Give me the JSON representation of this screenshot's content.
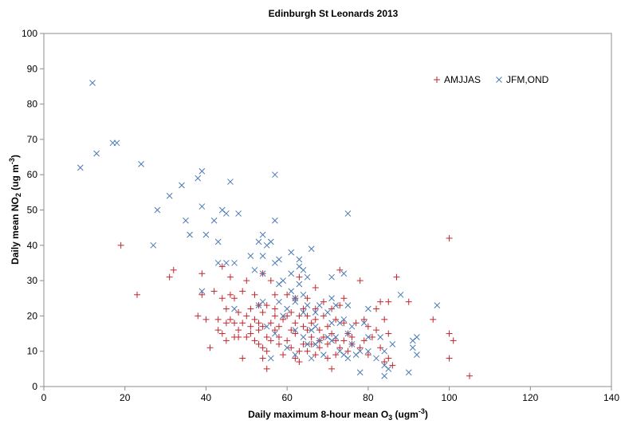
{
  "chart_data": {
    "type": "scatter",
    "title": "Edinburgh St Leonards 2013",
    "xlabel": {
      "main": "Daily maximum 8-hour mean O",
      "sub": "3",
      "tail": " (ugm",
      "sup": "-3",
      "end": ")"
    },
    "ylabel": {
      "main": "Daily mean NO",
      "sub": "2",
      "tail": " (ug m",
      "sup": "-3",
      "end": ")"
    },
    "xlim": [
      0,
      140
    ],
    "ylim": [
      0,
      100
    ],
    "xticks": [
      0,
      20,
      40,
      60,
      80,
      100,
      120,
      140
    ],
    "yticks": [
      0,
      10,
      20,
      30,
      40,
      50,
      60,
      70,
      80,
      90,
      100
    ],
    "grid": false,
    "legend_position": "top-right",
    "series": [
      {
        "name": "AMJJAS",
        "marker": "plus",
        "color": "#c0272d",
        "points": [
          [
            19,
            40
          ],
          [
            23,
            26
          ],
          [
            31,
            31
          ],
          [
            32,
            33
          ],
          [
            38,
            20
          ],
          [
            39,
            32
          ],
          [
            39,
            26
          ],
          [
            40,
            19
          ],
          [
            41,
            11
          ],
          [
            42,
            27
          ],
          [
            43,
            19
          ],
          [
            43,
            16
          ],
          [
            44,
            34
          ],
          [
            44,
            25
          ],
          [
            44,
            15
          ],
          [
            45,
            18
          ],
          [
            45,
            13
          ],
          [
            45,
            22
          ],
          [
            46,
            26
          ],
          [
            46,
            31
          ],
          [
            46,
            19
          ],
          [
            47,
            25
          ],
          [
            47,
            14
          ],
          [
            47,
            18
          ],
          [
            48,
            16
          ],
          [
            48,
            14
          ],
          [
            48,
            21
          ],
          [
            49,
            27
          ],
          [
            49,
            18
          ],
          [
            49,
            8
          ],
          [
            50,
            30
          ],
          [
            50,
            14
          ],
          [
            50,
            20
          ],
          [
            51,
            17
          ],
          [
            51,
            15
          ],
          [
            51,
            22
          ],
          [
            52,
            19
          ],
          [
            52,
            26
          ],
          [
            52,
            13
          ],
          [
            53,
            23
          ],
          [
            53,
            18
          ],
          [
            53,
            16
          ],
          [
            53,
            12
          ],
          [
            54,
            32
          ],
          [
            54,
            21
          ],
          [
            54,
            17
          ],
          [
            54,
            11
          ],
          [
            54,
            8
          ],
          [
            55,
            23
          ],
          [
            55,
            14
          ],
          [
            55,
            10
          ],
          [
            55,
            5
          ],
          [
            56,
            30
          ],
          [
            56,
            18
          ],
          [
            56,
            13
          ],
          [
            57,
            26
          ],
          [
            57,
            22
          ],
          [
            57,
            20
          ],
          [
            57,
            16
          ],
          [
            58,
            17
          ],
          [
            58,
            14
          ],
          [
            58,
            12
          ],
          [
            59,
            19
          ],
          [
            59,
            9
          ],
          [
            60,
            26
          ],
          [
            60,
            20
          ],
          [
            60,
            13
          ],
          [
            61,
            16
          ],
          [
            61,
            21
          ],
          [
            61,
            11
          ],
          [
            62,
            25
          ],
          [
            62,
            18
          ],
          [
            62,
            15
          ],
          [
            62,
            8
          ],
          [
            63,
            31
          ],
          [
            63,
            20
          ],
          [
            63,
            10
          ],
          [
            63,
            7
          ],
          [
            64,
            22
          ],
          [
            64,
            17
          ],
          [
            64,
            12
          ],
          [
            65,
            25
          ],
          [
            65,
            20
          ],
          [
            65,
            16
          ],
          [
            65,
            10
          ],
          [
            66,
            18
          ],
          [
            66,
            14
          ],
          [
            66,
            12
          ],
          [
            67,
            28
          ],
          [
            67,
            22
          ],
          [
            67,
            19
          ],
          [
            67,
            9
          ],
          [
            68,
            16
          ],
          [
            68,
            13
          ],
          [
            68,
            11
          ],
          [
            69,
            24
          ],
          [
            69,
            20
          ],
          [
            69,
            14
          ],
          [
            70,
            17
          ],
          [
            70,
            12
          ],
          [
            70,
            8
          ],
          [
            71,
            22
          ],
          [
            71,
            15
          ],
          [
            71,
            5
          ],
          [
            72,
            19
          ],
          [
            72,
            13
          ],
          [
            72,
            9
          ],
          [
            73,
            33
          ],
          [
            73,
            23
          ],
          [
            73,
            11
          ],
          [
            74,
            25
          ],
          [
            74,
            18
          ],
          [
            74,
            13
          ],
          [
            75,
            15
          ],
          [
            75,
            10
          ],
          [
            76,
            14
          ],
          [
            76,
            12
          ],
          [
            77,
            18
          ],
          [
            78,
            30
          ],
          [
            78,
            11
          ],
          [
            79,
            19
          ],
          [
            79,
            13
          ],
          [
            80,
            17
          ],
          [
            80,
            9
          ],
          [
            81,
            14
          ],
          [
            82,
            22
          ],
          [
            82,
            16
          ],
          [
            83,
            24
          ],
          [
            83,
            11
          ],
          [
            84,
            19
          ],
          [
            84,
            7
          ],
          [
            85,
            24
          ],
          [
            85,
            15
          ],
          [
            85,
            8
          ],
          [
            86,
            6
          ],
          [
            87,
            31
          ],
          [
            90,
            24
          ],
          [
            96,
            19
          ],
          [
            100,
            42
          ],
          [
            100,
            15
          ],
          [
            100,
            8
          ],
          [
            101,
            13
          ],
          [
            105,
            3
          ]
        ]
      },
      {
        "name": "JFM,OND",
        "marker": "cross",
        "color": "#4a7ab5",
        "points": [
          [
            9,
            62
          ],
          [
            12,
            86
          ],
          [
            13,
            66
          ],
          [
            17,
            69
          ],
          [
            18,
            69
          ],
          [
            24,
            63
          ],
          [
            27,
            40
          ],
          [
            28,
            50
          ],
          [
            31,
            54
          ],
          [
            34,
            57
          ],
          [
            35,
            47
          ],
          [
            36,
            43
          ],
          [
            38,
            59
          ],
          [
            39,
            61
          ],
          [
            39,
            51
          ],
          [
            39,
            27
          ],
          [
            40,
            43
          ],
          [
            42,
            47
          ],
          [
            43,
            41
          ],
          [
            43,
            35
          ],
          [
            44,
            50
          ],
          [
            45,
            35
          ],
          [
            45,
            49
          ],
          [
            46,
            58
          ],
          [
            47,
            35
          ],
          [
            47,
            22
          ],
          [
            48,
            49
          ],
          [
            51,
            37
          ],
          [
            52,
            33
          ],
          [
            53,
            41
          ],
          [
            53,
            23
          ],
          [
            54,
            43
          ],
          [
            54,
            37
          ],
          [
            54,
            32
          ],
          [
            54,
            24
          ],
          [
            55,
            40
          ],
          [
            55,
            17
          ],
          [
            56,
            41
          ],
          [
            56,
            8
          ],
          [
            57,
            60
          ],
          [
            57,
            47
          ],
          [
            57,
            35
          ],
          [
            57,
            15
          ],
          [
            58,
            36
          ],
          [
            58,
            29
          ],
          [
            58,
            24
          ],
          [
            59,
            20
          ],
          [
            59,
            30
          ],
          [
            60,
            22
          ],
          [
            60,
            11
          ],
          [
            61,
            32
          ],
          [
            61,
            27
          ],
          [
            61,
            38
          ],
          [
            62,
            24
          ],
          [
            62,
            25
          ],
          [
            62,
            16
          ],
          [
            62,
            9
          ],
          [
            63,
            36
          ],
          [
            63,
            34
          ],
          [
            63,
            29
          ],
          [
            64,
            26
          ],
          [
            64,
            21
          ],
          [
            64,
            14
          ],
          [
            64,
            33
          ],
          [
            65,
            31
          ],
          [
            65,
            23
          ],
          [
            65,
            12
          ],
          [
            66,
            39
          ],
          [
            66,
            16
          ],
          [
            66,
            8
          ],
          [
            67,
            21
          ],
          [
            67,
            17
          ],
          [
            67,
            12
          ],
          [
            68,
            23
          ],
          [
            68,
            13
          ],
          [
            69,
            9
          ],
          [
            70,
            21
          ],
          [
            70,
            14
          ],
          [
            71,
            31
          ],
          [
            71,
            25
          ],
          [
            71,
            18
          ],
          [
            71,
            13
          ],
          [
            72,
            23
          ],
          [
            72,
            14
          ],
          [
            73,
            18
          ],
          [
            73,
            10
          ],
          [
            74,
            32
          ],
          [
            74,
            19
          ],
          [
            74,
            9
          ],
          [
            75,
            49
          ],
          [
            75,
            23
          ],
          [
            75,
            15
          ],
          [
            75,
            8
          ],
          [
            76,
            17
          ],
          [
            76,
            12
          ],
          [
            77,
            9
          ],
          [
            78,
            4
          ],
          [
            78,
            10
          ],
          [
            79,
            18
          ],
          [
            80,
            22
          ],
          [
            80,
            14
          ],
          [
            80,
            10
          ],
          [
            82,
            8
          ],
          [
            83,
            14
          ],
          [
            84,
            3
          ],
          [
            84,
            6
          ],
          [
            84,
            10
          ],
          [
            85,
            5
          ],
          [
            86,
            12
          ],
          [
            88,
            26
          ],
          [
            90,
            4
          ],
          [
            91,
            13
          ],
          [
            91,
            11
          ],
          [
            92,
            9
          ],
          [
            92,
            14
          ],
          [
            97,
            23
          ]
        ]
      }
    ]
  }
}
